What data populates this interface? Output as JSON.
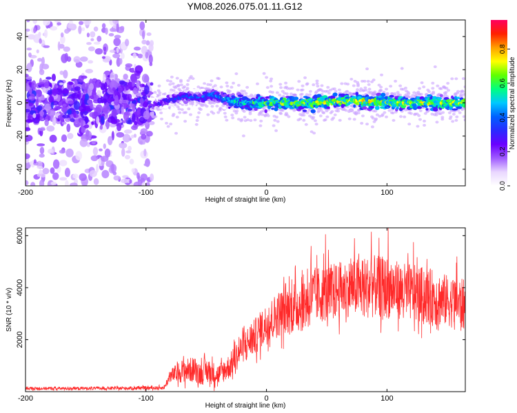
{
  "chart_data": [
    {
      "type": "heatmap",
      "title": "YM08.2026.075.01.11.G12",
      "xlabel": "Height of straight line (km)",
      "ylabel": "Frequency (Hz)",
      "xlim": [
        -200,
        165
      ],
      "ylim": [
        -50,
        50
      ],
      "xticks": [
        -200,
        -100,
        0,
        100
      ],
      "yticks": [
        -40,
        -20,
        0,
        20,
        40
      ],
      "colorbar": {
        "label": "Normalized spectral amplitude",
        "range": [
          0.0,
          0.97
        ],
        "ticks": [
          0.0,
          0.2,
          0.4,
          0.6,
          0.8
        ],
        "colormap": [
          "#ffffff",
          "#e9d7ff",
          "#a05cff",
          "#6a00ff",
          "#2a2aff",
          "#0060ff",
          "#00c8ff",
          "#00ff80",
          "#60ff00",
          "#ffff00",
          "#ffa000",
          "#ff2000",
          "#ff0060"
        ]
      },
      "noise_region": {
        "x_range": [
          -200,
          -95
        ],
        "freq_spread": 50,
        "level": 0.15
      },
      "ridge": {
        "description": "frequency ridge of the signal vs height",
        "x": [
          -95,
          -80,
          -65,
          -55,
          -45,
          -40,
          -30,
          -20,
          0,
          20,
          40,
          60,
          80,
          100,
          120,
          140,
          165
        ],
        "freq": [
          -2,
          2,
          4,
          3,
          5,
          4,
          1,
          0,
          0,
          0,
          0,
          1,
          1,
          0,
          0,
          0,
          0
        ],
        "amplitude": [
          0.3,
          0.4,
          0.45,
          0.45,
          0.5,
          0.55,
          0.6,
          0.65,
          0.75,
          0.8,
          0.8,
          0.8,
          0.85,
          0.8,
          0.8,
          0.8,
          0.8
        ]
      }
    },
    {
      "type": "line",
      "title": "",
      "xlabel": "Height of straight line (km)",
      "ylabel": "SNR (10 * v/v)",
      "xlim": [
        -200,
        165
      ],
      "ylim": [
        0,
        6300
      ],
      "xticks": [
        -200,
        -100,
        0,
        100
      ],
      "yticks": [
        2000,
        4000,
        6000
      ],
      "color": "#ff2a2a",
      "series": [
        {
          "name": "SNR",
          "envelope_x": [
            -200,
            -120,
            -85,
            -80,
            -70,
            -60,
            -55,
            -50,
            -40,
            -30,
            -20,
            -10,
            0,
            10,
            20,
            30,
            40,
            50,
            60,
            70,
            80,
            90,
            100,
            110,
            120,
            130,
            140,
            150,
            160,
            165
          ],
          "envelope_median": [
            120,
            130,
            150,
            600,
            800,
            850,
            700,
            800,
            650,
            1000,
            1700,
            2100,
            2600,
            3000,
            3200,
            3400,
            3700,
            3800,
            3900,
            4000,
            4000,
            4050,
            4000,
            3900,
            3800,
            3700,
            3600,
            3500,
            3400,
            3300
          ],
          "envelope_spread": [
            60,
            60,
            70,
            250,
            450,
            500,
            450,
            500,
            400,
            500,
            600,
            700,
            800,
            900,
            1000,
            1100,
            1100,
            1100,
            1100,
            1100,
            1200,
            1200,
            1200,
            1100,
            1100,
            1100,
            1100,
            1000,
            1000,
            1000
          ],
          "peaks": [
            {
              "x": 37,
              "y": 5600
            },
            {
              "x": 49,
              "y": 6050
            },
            {
              "x": 73,
              "y": 5900
            },
            {
              "x": 87,
              "y": 6150
            },
            {
              "x": 101,
              "y": 6300
            },
            {
              "x": 122,
              "y": 5750
            },
            {
              "x": 158,
              "y": 5200
            }
          ]
        }
      ]
    }
  ]
}
